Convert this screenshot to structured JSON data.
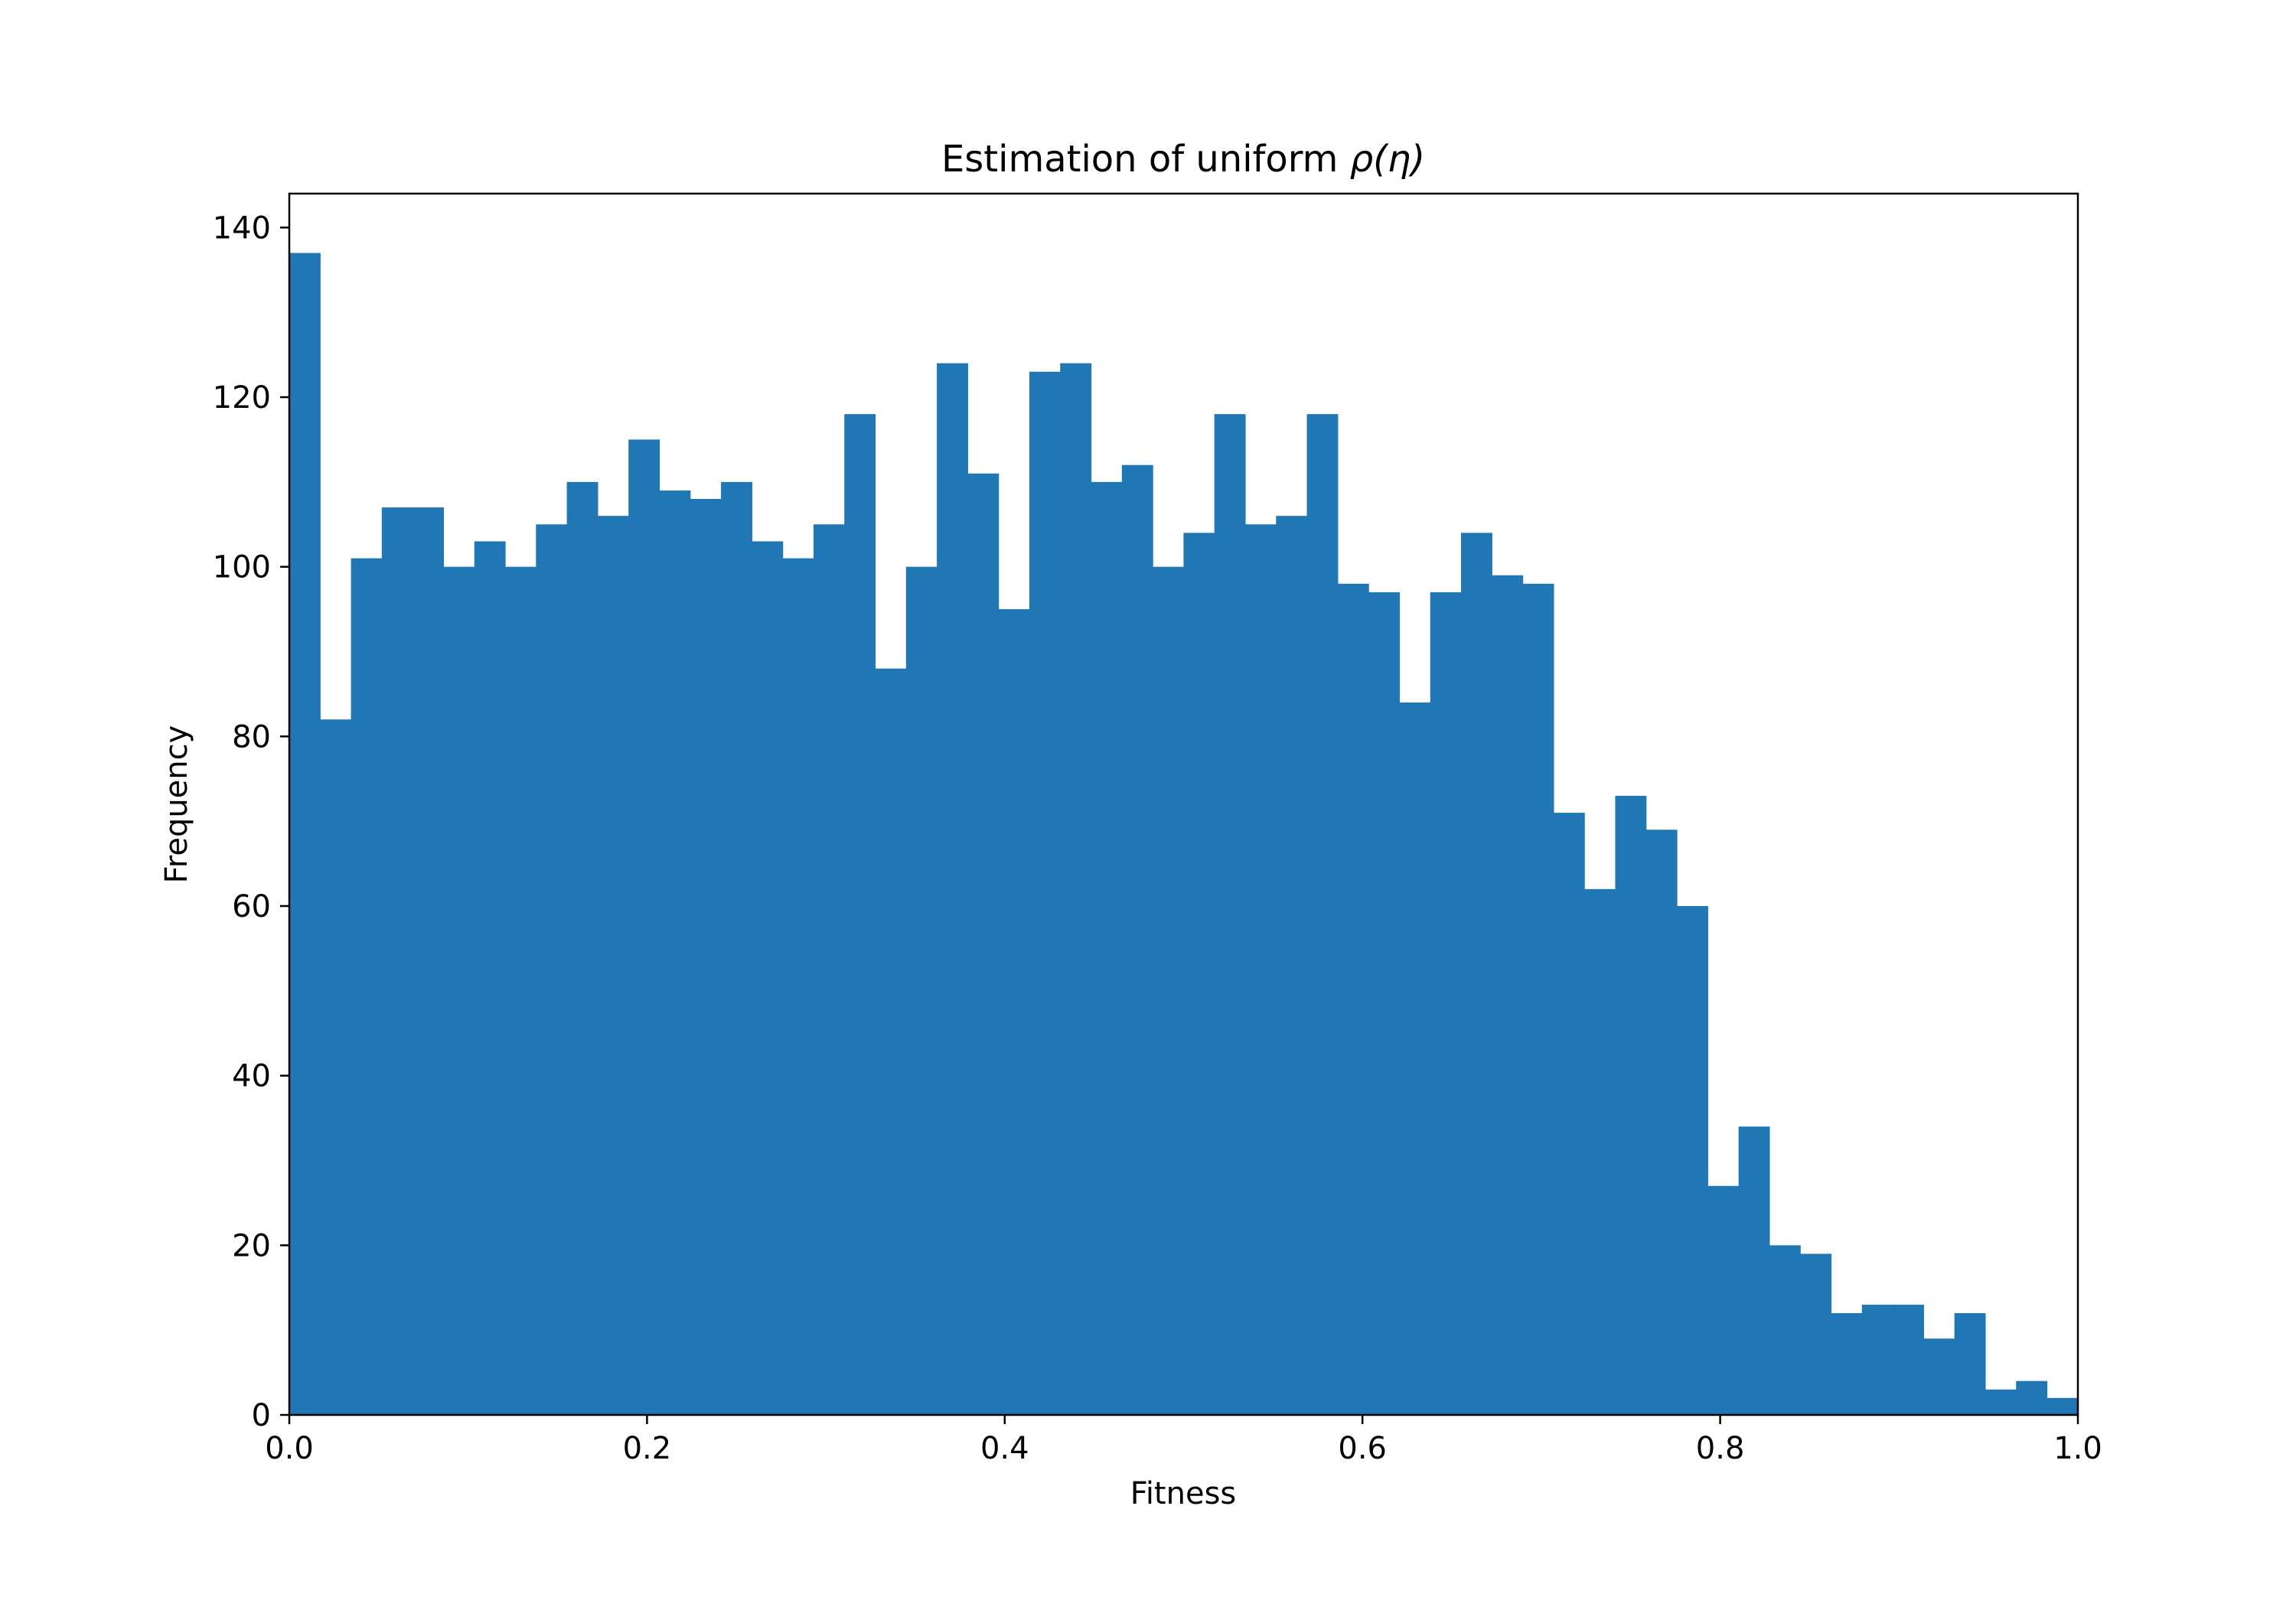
{
  "chart_data": {
    "type": "bar",
    "title_text": "Estimation of uniform ",
    "title_math": "ρ(η)",
    "xlabel": "Fitness",
    "ylabel": "Frequency",
    "xlim": [
      0.0,
      1.0
    ],
    "ylim": [
      0,
      144
    ],
    "x_ticks": [
      "0.0",
      "0.2",
      "0.4",
      "0.6",
      "0.8",
      "1.0"
    ],
    "y_ticks": [
      "0",
      "20",
      "40",
      "60",
      "80",
      "100",
      "120",
      "140"
    ],
    "bin_width": 0.01724,
    "bin_start": 0.0,
    "values": [
      137,
      82,
      101,
      107,
      107,
      100,
      103,
      100,
      105,
      110,
      106,
      115,
      109,
      108,
      110,
      103,
      101,
      105,
      118,
      88,
      100,
      124,
      111,
      95,
      123,
      124,
      110,
      112,
      100,
      104,
      118,
      105,
      106,
      118,
      98,
      97,
      84,
      97,
      104,
      99,
      98,
      71,
      62,
      73,
      69,
      60,
      27,
      34,
      20,
      19,
      12,
      13,
      13,
      9,
      12,
      3,
      4,
      2
    ],
    "bar_color": "#2077b4",
    "grid": false,
    "legend": "none"
  }
}
